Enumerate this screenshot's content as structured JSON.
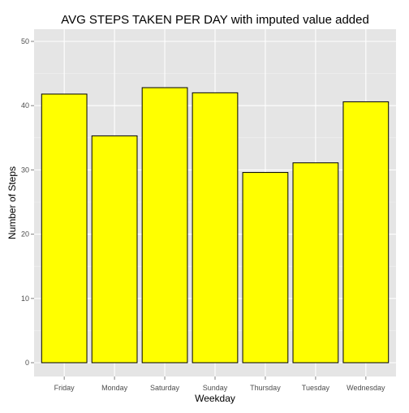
{
  "chart_data": {
    "type": "bar",
    "title": "AVG STEPS TAKEN PER DAY with imputed value added",
    "xlabel": "Weekday",
    "ylabel": "Number of Steps",
    "categories": [
      "Friday",
      "Monday",
      "Saturday",
      "Sunday",
      "Thursday",
      "Tuesday",
      "Wednesday"
    ],
    "values": [
      41.8,
      35.3,
      42.8,
      42.0,
      29.6,
      31.1,
      40.6
    ],
    "ylim": [
      0,
      50
    ],
    "yticks": [
      0,
      10,
      20,
      30,
      40,
      50
    ],
    "grid": true,
    "colors": {
      "bar_fill": "#ffff00",
      "bar_stroke": "#000000",
      "panel_background": "#e5e5e5"
    }
  }
}
